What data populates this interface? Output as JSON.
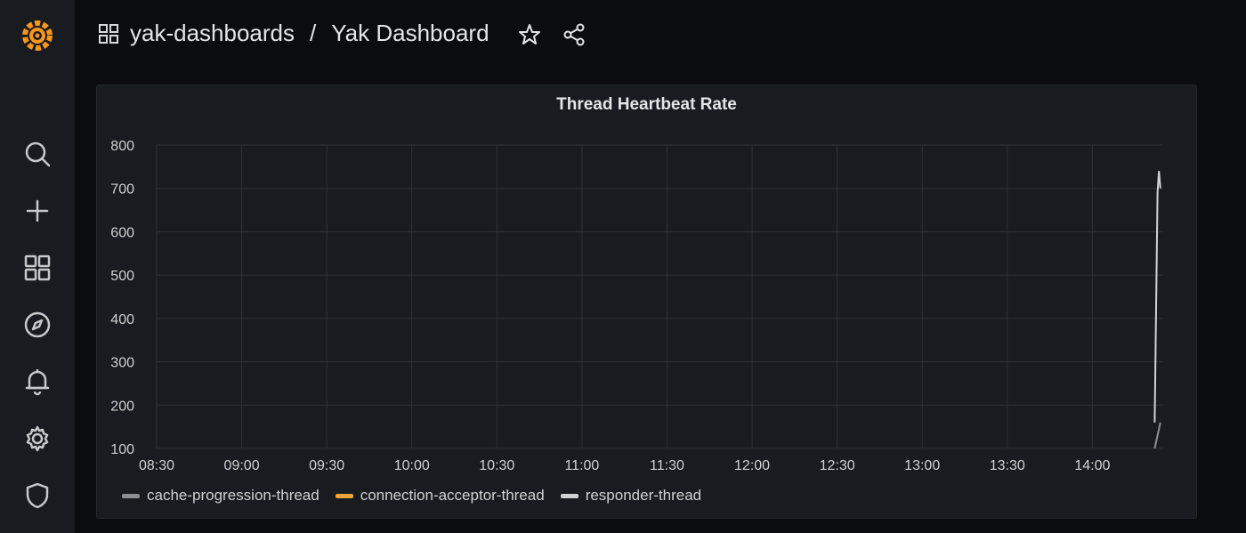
{
  "breadcrumb": {
    "folder": "yak-dashboards",
    "separator": "/",
    "dashboard": "Yak Dashboard"
  },
  "sidebar": {
    "items": [
      "grafana-logo",
      "search-icon",
      "plus-icon",
      "dashboards-icon",
      "explore-icon",
      "alerting-icon",
      "settings-icon",
      "shield-icon"
    ]
  },
  "colors": {
    "accent": "#f79520",
    "series_gray": "#8e8e8e",
    "series_orange": "#f2a33a",
    "series_white": "#d0d1d3"
  },
  "chart_data": {
    "type": "line",
    "title": "Thread Heartbeat Rate",
    "yticks": [
      "800",
      "700",
      "600",
      "500",
      "400",
      "300",
      "200",
      "100"
    ],
    "ylim": [
      100,
      800
    ],
    "xticks": [
      "08:30",
      "09:00",
      "09:30",
      "10:00",
      "10:30",
      "11:00",
      "11:30",
      "12:00",
      "12:30",
      "13:00",
      "13:30",
      "14:00"
    ],
    "xlim_minutes": [
      510,
      865
    ],
    "series": [
      {
        "name": "cache-progression-thread",
        "color": "#8e8e8e",
        "points": [
          [
            862,
            100
          ],
          [
            863,
            130
          ],
          [
            864,
            160
          ]
        ]
      },
      {
        "name": "connection-acceptor-thread",
        "color": "#f2a33a",
        "points": []
      },
      {
        "name": "responder-thread",
        "color": "#d0d1d3",
        "points": [
          [
            862,
            160
          ],
          [
            863,
            690
          ],
          [
            863.5,
            740
          ],
          [
            864,
            700
          ]
        ]
      }
    ]
  }
}
